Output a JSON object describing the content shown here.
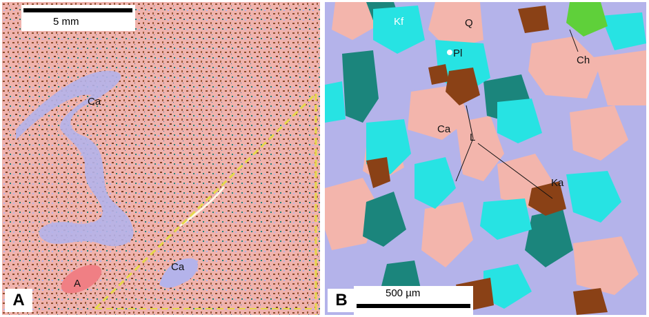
{
  "panel_a": {
    "letter": "A",
    "scale_label": "5 mm",
    "labels": {
      "ca_top": "Ca",
      "ca_bottom": "Ca",
      "a": "A"
    },
    "colors": {
      "matrix": "#f0b3ad",
      "calcite": "#b4b3ea",
      "anhydrite": "#f07f84",
      "fracture": "#e6d84a",
      "clay": "#8a4a2a",
      "chlorite": "#1e8078"
    }
  },
  "panel_b": {
    "letter": "B",
    "scale_label": "500 µm",
    "labels": {
      "kf": "Kf",
      "q": "Q",
      "pl": "Pl",
      "ch": "Ch",
      "ca": "Ca",
      "l": "L",
      "ka": "Ka"
    },
    "colors": {
      "quartz": "#f3b5ac",
      "calcite": "#b4b3ea",
      "kfeldspar": "#1b857c",
      "plagioclase": "#27e3e3",
      "kaolinite": "#8a4116",
      "chlorite": "#5fd03a"
    }
  }
}
